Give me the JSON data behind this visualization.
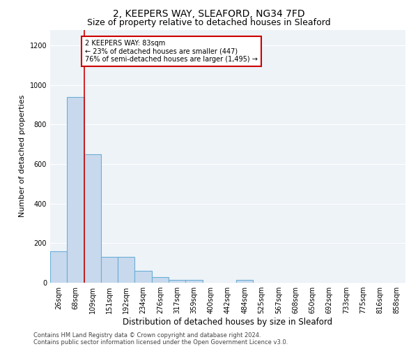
{
  "title1": "2, KEEPERS WAY, SLEAFORD, NG34 7FD",
  "title2": "Size of property relative to detached houses in Sleaford",
  "xlabel": "Distribution of detached houses by size in Sleaford",
  "ylabel": "Number of detached properties",
  "footnote": "Contains HM Land Registry data © Crown copyright and database right 2024.\nContains public sector information licensed under the Open Government Licence v3.0.",
  "bin_labels": [
    "26sqm",
    "68sqm",
    "109sqm",
    "151sqm",
    "192sqm",
    "234sqm",
    "276sqm",
    "317sqm",
    "359sqm",
    "400sqm",
    "442sqm",
    "484sqm",
    "525sqm",
    "567sqm",
    "608sqm",
    "650sqm",
    "692sqm",
    "733sqm",
    "775sqm",
    "816sqm",
    "858sqm"
  ],
  "bar_heights": [
    160,
    940,
    650,
    130,
    130,
    60,
    28,
    15,
    15,
    0,
    0,
    15,
    0,
    0,
    0,
    0,
    0,
    0,
    0,
    0,
    0
  ],
  "bar_color": "#c8d9ed",
  "bar_edge_color": "#6baed6",
  "red_line_x": 1.5,
  "annotation_text": "2 KEEPERS WAY: 83sqm\n← 23% of detached houses are smaller (447)\n76% of semi-detached houses are larger (1,495) →",
  "annotation_box_color": "#ffffff",
  "annotation_border_color": "#cc0000",
  "ylim": [
    0,
    1280
  ],
  "yticks": [
    0,
    200,
    400,
    600,
    800,
    1000,
    1200
  ],
  "bg_color": "#eef3f8",
  "title1_fontsize": 10,
  "title2_fontsize": 9,
  "xlabel_fontsize": 8.5,
  "ylabel_fontsize": 8,
  "tick_fontsize": 7,
  "footnote_fontsize": 6
}
